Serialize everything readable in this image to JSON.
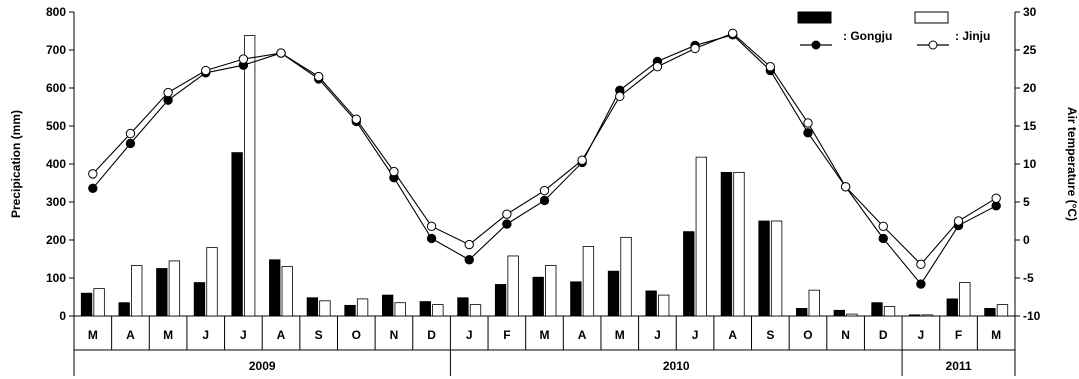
{
  "chart_data": {
    "type": "bar+line",
    "title": "",
    "ylabel_left": "Precipication (mm)",
    "ylabel_right": "Air temperature (°C)",
    "ylim_left": [
      0,
      800
    ],
    "ylim_right": [
      -10,
      30
    ],
    "yticks_left": [
      "0",
      "100",
      "200",
      "300",
      "400",
      "500",
      "600",
      "700",
      "800"
    ],
    "yticks_right": [
      "-10",
      "-5",
      "0",
      "5",
      "10",
      "15",
      "20",
      "25",
      "30"
    ],
    "months": [
      "M",
      "A",
      "M",
      "J",
      "J",
      "A",
      "S",
      "O",
      "N",
      "D",
      "J",
      "F",
      "M",
      "A",
      "M",
      "J",
      "J",
      "A",
      "S",
      "O",
      "N",
      "D",
      "J",
      "F",
      "M"
    ],
    "years": [
      {
        "label": "2009",
        "span": 10
      },
      {
        "label": "2010",
        "span": 12
      },
      {
        "label": "2011",
        "span": 3
      }
    ],
    "precipitation_series": [
      {
        "name": "Gongju",
        "fill": "#000000",
        "values": [
          60,
          35,
          125,
          88,
          430,
          148,
          48,
          28,
          55,
          38,
          48,
          83,
          102,
          90,
          118,
          66,
          222,
          378,
          250,
          20,
          15,
          35,
          3,
          45,
          20
        ]
      },
      {
        "name": "Jinju",
        "fill": "#ffffff",
        "values": [
          72,
          133,
          145,
          180,
          738,
          130,
          40,
          45,
          35,
          30,
          30,
          158,
          133,
          183,
          207,
          55,
          418,
          378,
          250,
          68,
          5,
          25,
          3,
          88,
          30
        ]
      }
    ],
    "temperature_series": [
      {
        "name": "Gongju",
        "marker_fill": "#000000",
        "values": [
          6.8,
          12.7,
          18.4,
          22.0,
          23.0,
          24.6,
          21.2,
          15.6,
          8.2,
          0.2,
          -2.6,
          2.1,
          5.2,
          10.2,
          19.7,
          23.5,
          25.6,
          27.0,
          22.3,
          14.1,
          7.0,
          0.2,
          -5.8,
          1.9,
          4.5
        ]
      },
      {
        "name": "Jinju",
        "marker_fill": "#ffffff",
        "values": [
          8.7,
          14.0,
          19.4,
          22.3,
          23.8,
          24.6,
          21.5,
          15.9,
          9.0,
          1.8,
          -0.6,
          3.4,
          6.5,
          10.5,
          18.9,
          22.8,
          25.2,
          27.2,
          22.8,
          15.4,
          7.0,
          1.8,
          -3.2,
          2.5,
          5.5
        ]
      }
    ],
    "legend": {
      "placement": "top-right",
      "gongju_label": ": Gongju",
      "jinju_label": ": Jinju"
    }
  }
}
